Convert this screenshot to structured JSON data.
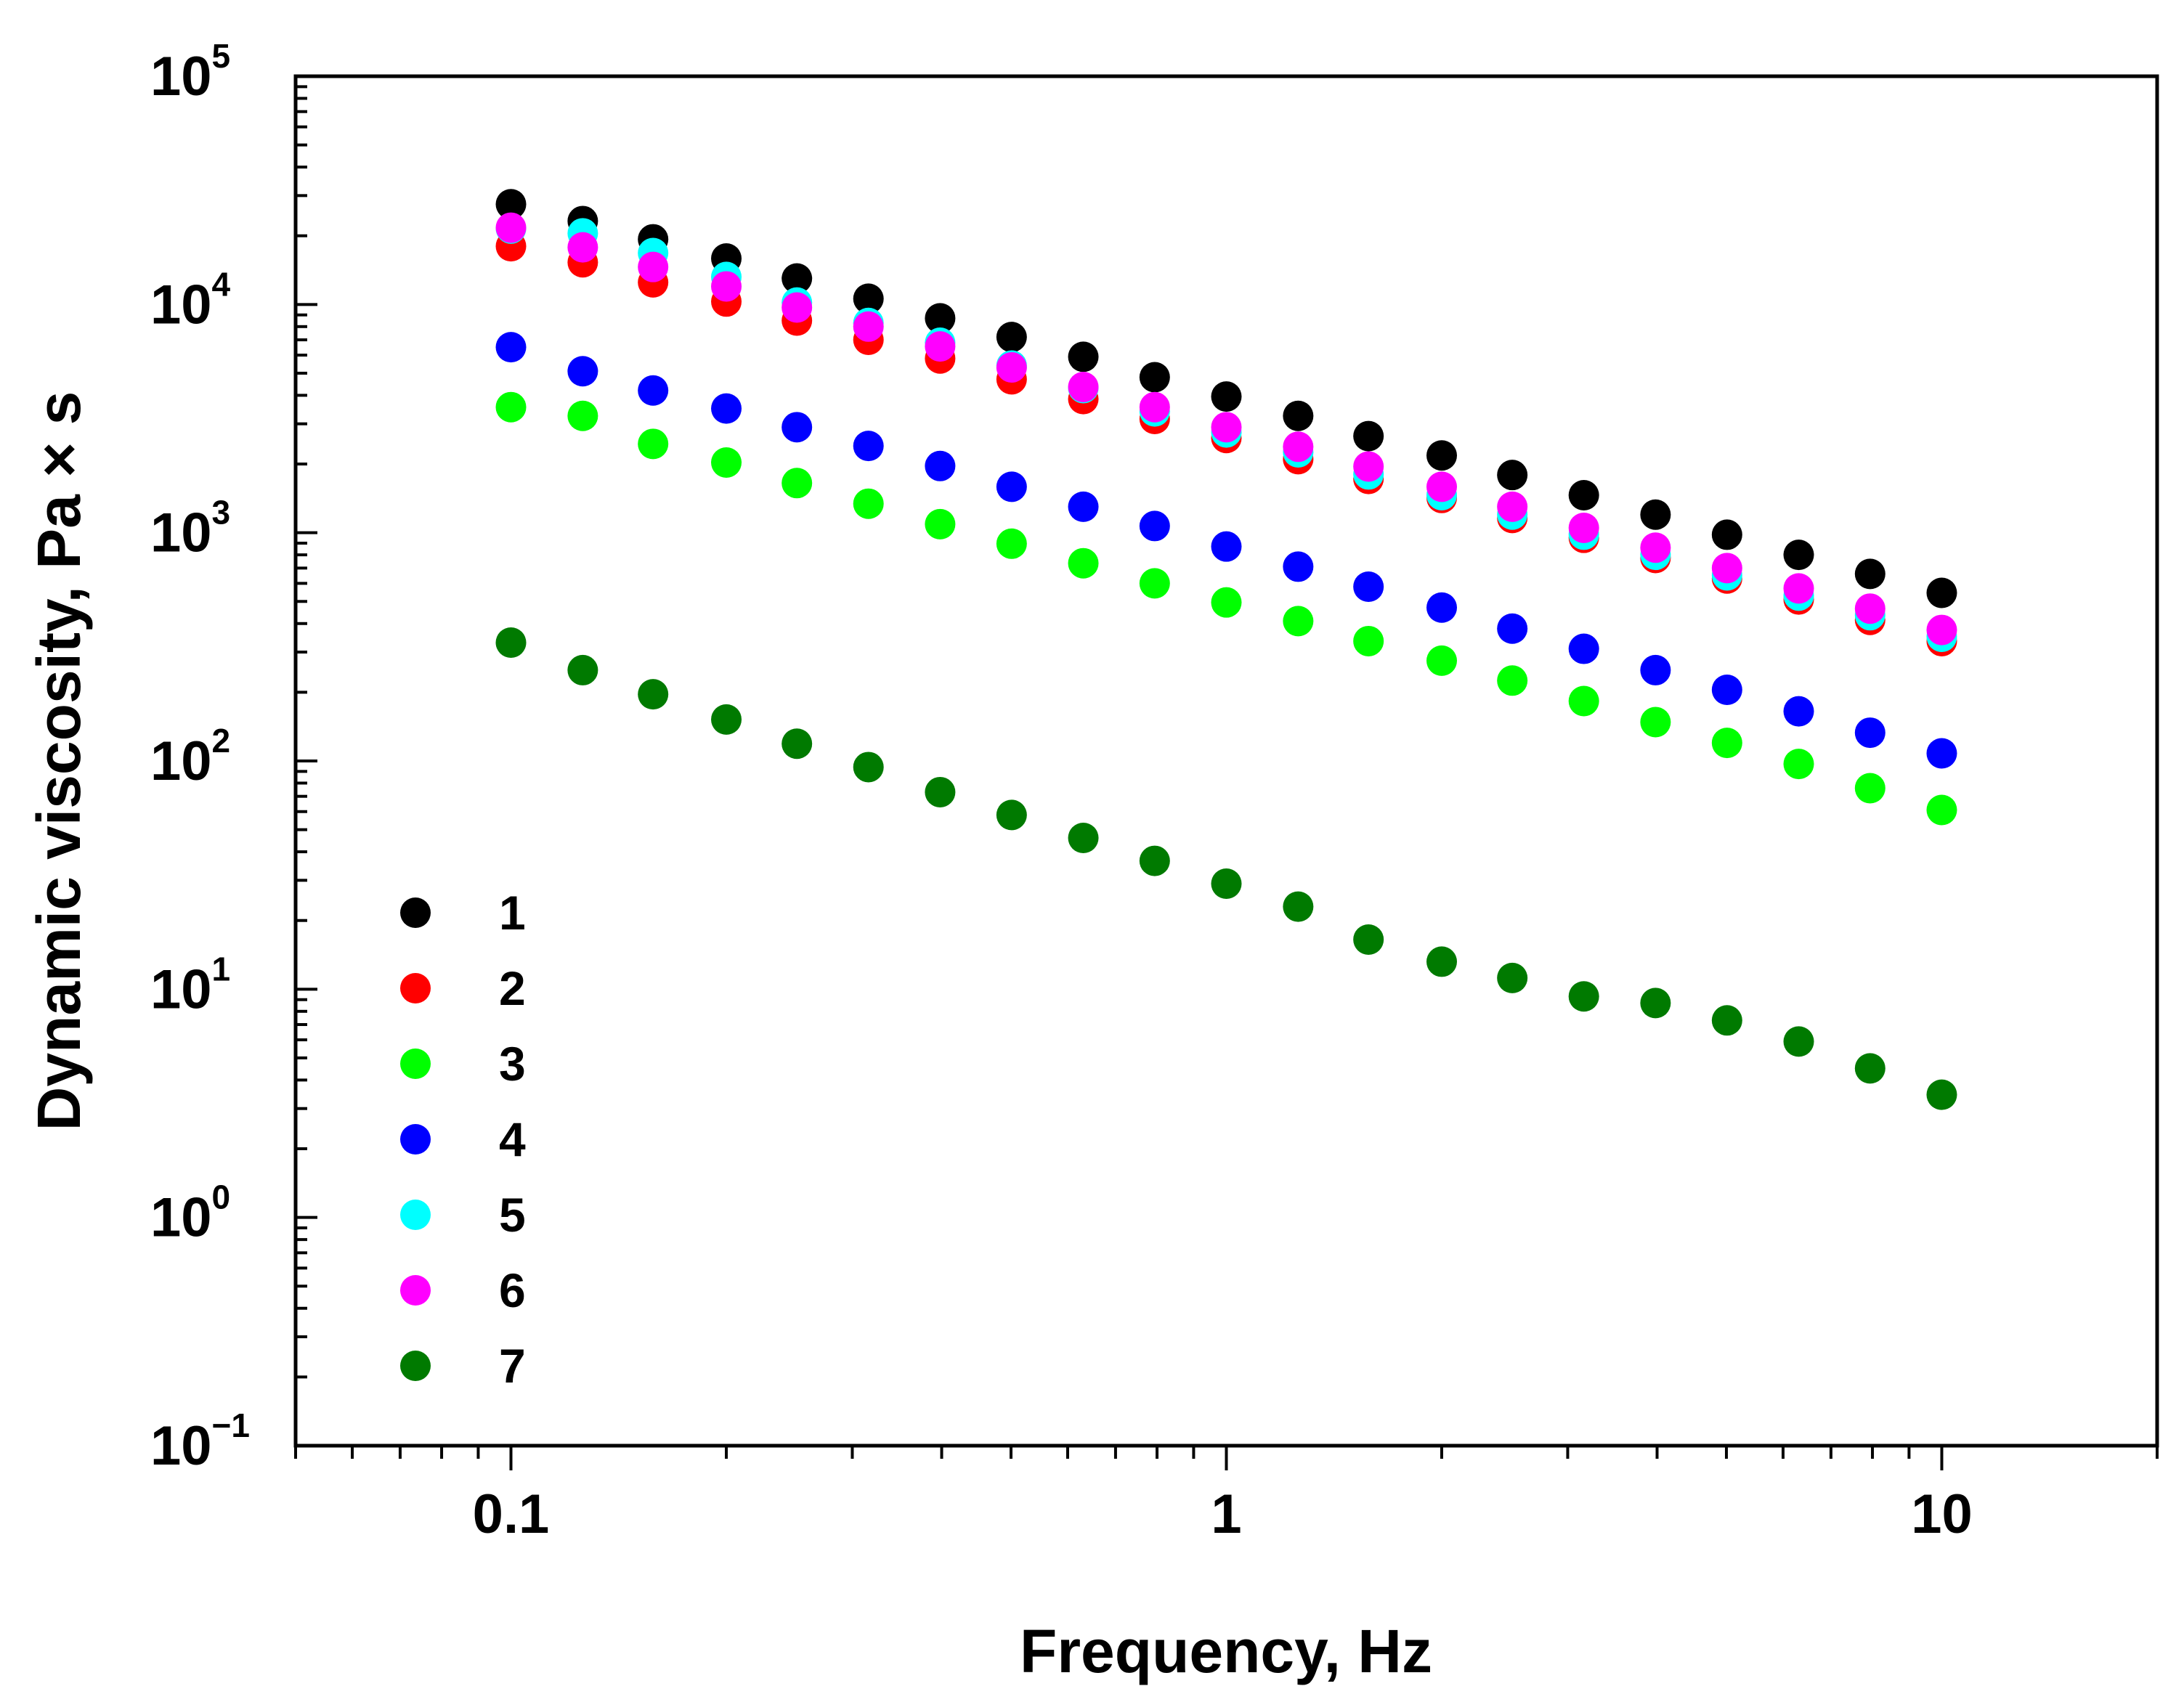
{
  "chart_data": {
    "type": "scatter",
    "title": "",
    "xlabel": "Frequency, Hz",
    "ylabel": "Dynamic viscosity, Pa × s",
    "x_scale": "log",
    "y_scale": "log",
    "xlim": [
      0.05,
      20
    ],
    "ylim": [
      0.1,
      100000
    ],
    "x_tick_labels": [
      {
        "value": 0.1,
        "label": "0.1"
      },
      {
        "value": 1,
        "label": "1"
      },
      {
        "value": 10,
        "label": "10"
      }
    ],
    "y_tick_labels": [
      {
        "value": 100000,
        "base": "10",
        "exp": "5"
      },
      {
        "value": 10000,
        "base": "10",
        "exp": "4"
      },
      {
        "value": 1000,
        "base": "10",
        "exp": "3"
      },
      {
        "value": 100,
        "base": "10",
        "exp": "2"
      },
      {
        "value": 10,
        "base": "10",
        "exp": "1"
      },
      {
        "value": 1,
        "base": "10",
        "exp": "0"
      },
      {
        "value": 0.1,
        "base": "10",
        "exp": "−1"
      }
    ],
    "grid": false,
    "legend_position": "bottom-left",
    "x": [
      0.1,
      0.126,
      0.158,
      0.2,
      0.251,
      0.316,
      0.398,
      0.501,
      0.631,
      0.794,
      1.0,
      1.26,
      1.58,
      2.0,
      2.51,
      3.16,
      3.98,
      5.01,
      6.31,
      7.94,
      10.0
    ],
    "series": [
      {
        "name": "1",
        "color": "#000000",
        "values": [
          27500,
          23200,
          19300,
          15900,
          13000,
          10600,
          8700,
          7200,
          5900,
          4800,
          3950,
          3250,
          2650,
          2180,
          1790,
          1460,
          1200,
          980,
          800,
          660,
          545
        ]
      },
      {
        "name": "2",
        "color": "#ff0000",
        "values": [
          18000,
          15300,
          12500,
          10300,
          8500,
          7000,
          5800,
          4700,
          3850,
          3150,
          2600,
          2100,
          1720,
          1420,
          1160,
          950,
          775,
          630,
          510,
          415,
          335
        ]
      },
      {
        "name": "3",
        "color": "#00ff00",
        "values": [
          3550,
          3250,
          2450,
          2030,
          1650,
          1340,
          1090,
          895,
          735,
          600,
          495,
          410,
          335,
          275,
          225,
          183,
          148,
          120,
          97,
          76,
          61
        ]
      },
      {
        "name": "4",
        "color": "#0000ff",
        "values": [
          6500,
          5100,
          4200,
          3500,
          2900,
          2400,
          1960,
          1590,
          1300,
          1070,
          870,
          710,
          580,
          470,
          380,
          310,
          250,
          205,
          165,
          133,
          108
        ]
      },
      {
        "name": "5",
        "color": "#00ffff",
        "values": [
          21500,
          20500,
          16800,
          13200,
          10200,
          8300,
          6800,
          5400,
          4300,
          3400,
          2750,
          2250,
          1800,
          1460,
          1200,
          980,
          800,
          650,
          530,
          435,
          350
        ]
      },
      {
        "name": "6",
        "color": "#ff00ff",
        "values": [
          21700,
          17800,
          14600,
          12000,
          9700,
          8000,
          6550,
          5300,
          4350,
          3550,
          2900,
          2380,
          1950,
          1590,
          1300,
          1050,
          860,
          700,
          570,
          465,
          375
        ]
      },
      {
        "name": "7",
        "color": "#007a00",
        "values": [
          330,
          250,
          196,
          152,
          119,
          94,
          73,
          58,
          46,
          36.5,
          29,
          23,
          16.5,
          13.2,
          11.2,
          9.3,
          8.7,
          7.3,
          5.9,
          4.5,
          3.45
        ]
      }
    ]
  }
}
